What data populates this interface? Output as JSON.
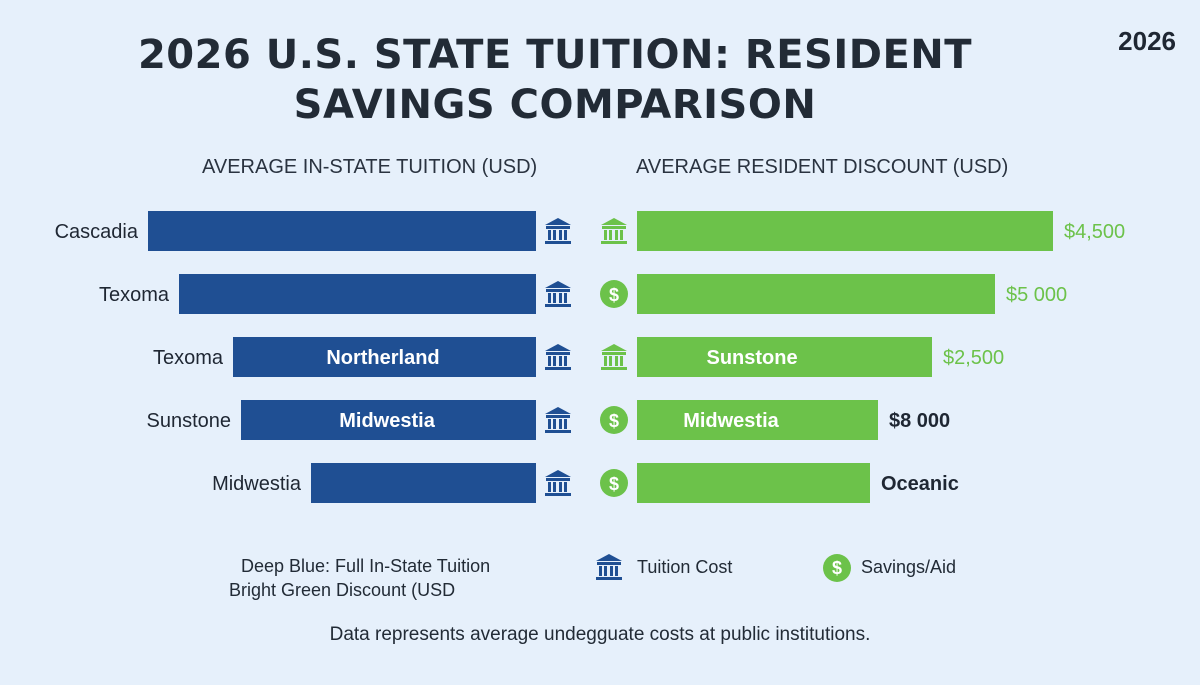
{
  "title_line1": "2026 U.S. STATE TUITION: RESIDENT",
  "title_line2": "SAVINGS COMPARISON",
  "year_badge": "2026",
  "colors": {
    "tuition": "#1f4f93",
    "discount": "#6cc24a",
    "discount_label": "#6cc24a",
    "dark_label": "#1f2733"
  },
  "chart_data": {
    "type": "bar",
    "orientation": "horizontal-butterfly",
    "left_axis_title": "AVERAGE IN-STATE TUITION (USD)",
    "right_axis_title": "AVERAGE RESIDENT DISCOUNT (USD)",
    "rows": [
      {
        "state": "Cascadia",
        "tuition_bar_label": "",
        "discount_bar_label": "",
        "value_label": "$4,500",
        "value_label_color": "green",
        "tuition_relative": 1.0,
        "discount_relative": 1.0,
        "tuition_icon": "bank-icon",
        "discount_icon": "bank-icon"
      },
      {
        "state": "Texoma",
        "tuition_bar_label": "",
        "discount_bar_label": "",
        "value_label": "$5 000",
        "value_label_color": "green",
        "tuition_relative": 0.92,
        "discount_relative": 0.86,
        "tuition_icon": "bank-icon",
        "discount_icon": "dollar-icon"
      },
      {
        "state": "Texoma",
        "tuition_bar_label": "Northerland",
        "discount_bar_label": "Sunstone",
        "value_label": "$2,500",
        "value_label_color": "green",
        "tuition_relative": 0.78,
        "discount_relative": 0.71,
        "tuition_icon": "bank-icon",
        "discount_icon": "bank-icon"
      },
      {
        "state": "Sunstone",
        "tuition_bar_label": "Midwestia",
        "discount_bar_label": "Midwestia",
        "value_label": "$8 000",
        "value_label_color": "dark",
        "tuition_relative": 0.76,
        "discount_relative": 0.58,
        "tuition_icon": "bank-icon",
        "discount_icon": "dollar-icon"
      },
      {
        "state": "Midwestia",
        "tuition_bar_label": "",
        "discount_bar_label": "",
        "value_label": "Oceanic",
        "value_label_color": "dark",
        "tuition_relative": 0.58,
        "discount_relative": 0.56,
        "tuition_icon": "bank-icon",
        "discount_icon": "dollar-icon"
      }
    ]
  },
  "legend": {
    "line1": "Deep Blue: Full In-State Tuition",
    "line2": "Bright Green Discount (USD",
    "tuition_label": "Tuition Cost",
    "savings_label": "Savings/Aid",
    "tuition_icon": "bank-icon",
    "savings_icon": "dollar-icon"
  },
  "footnote": "Data represents average undegguate costs at public institutions."
}
